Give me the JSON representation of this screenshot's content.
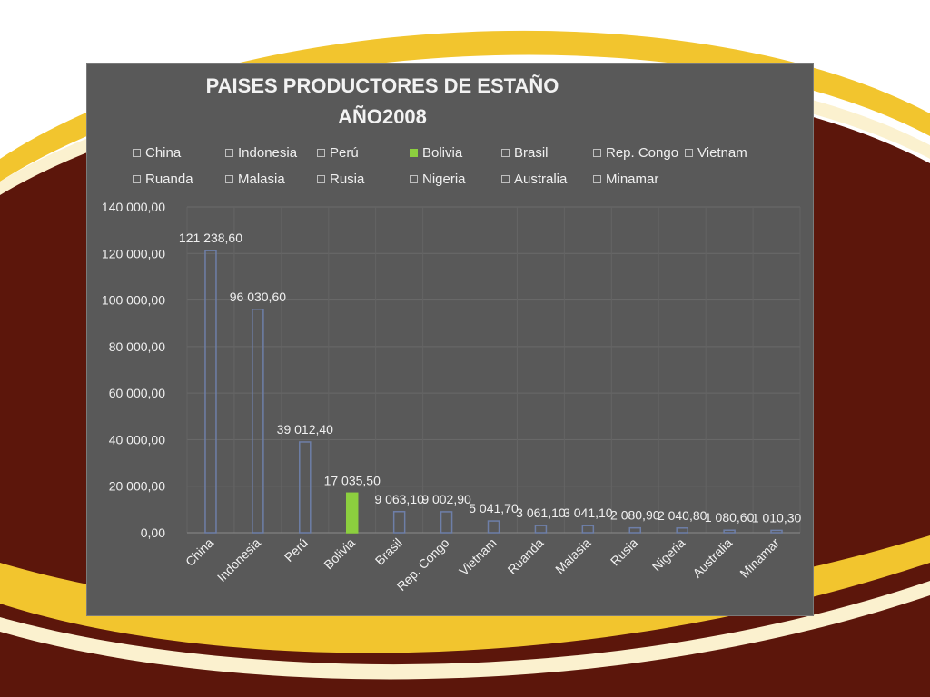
{
  "colors": {
    "maroon": "#5c160b",
    "gold": "#f2c52e",
    "cream": "#fbf1cf",
    "panel": "#595959",
    "bar_outline": "#6e7fa8",
    "highlight_bar": "#8ccf3f"
  },
  "chart_data": {
    "type": "bar",
    "title_lines": [
      "PAISES PRODUCTORES DE ESTAÑO",
      "AÑO2008"
    ],
    "categories": [
      "China",
      "Indonesia",
      "Perú",
      "Bolivia",
      "Brasil",
      "Rep. Congo",
      "Vietnam",
      "Ruanda",
      "Malasia",
      "Rusia",
      "Nigeria",
      "Australia",
      "Minamar"
    ],
    "values": [
      121238.6,
      96030.6,
      39012.4,
      17035.5,
      9063.1,
      9002.9,
      5041.7,
      3061.1,
      3041.1,
      2080.9,
      2040.8,
      1080.6,
      1010.3
    ],
    "data_labels": [
      "121 238,60",
      "96 030,60",
      "39 012,40",
      "17 035,50",
      "9 063,10",
      "9 002,90",
      "5 041,70",
      "3 061,10",
      "3 041,10",
      "2 080,90",
      "2 040,80",
      "1 080,60",
      "1 010,30"
    ],
    "legend": [
      "China",
      "Indonesia",
      "Perú",
      "Bolivia",
      "Brasil",
      "Rep. Congo",
      "Vietnam",
      "Ruanda",
      "Malasia",
      "Rusia",
      "Nigeria",
      "Australia",
      "Minamar"
    ],
    "highlighted_category": "Bolivia",
    "ylim": [
      0,
      140000
    ],
    "y_ticks": [
      0,
      20000,
      40000,
      60000,
      80000,
      100000,
      120000,
      140000
    ],
    "y_tick_labels": [
      "0,00",
      "20 000,00",
      "40 000,00",
      "60 000,00",
      "80 000,00",
      "100 000,00",
      "120 000,00",
      "140 000,00"
    ],
    "grid": true,
    "legend_position": "top"
  }
}
